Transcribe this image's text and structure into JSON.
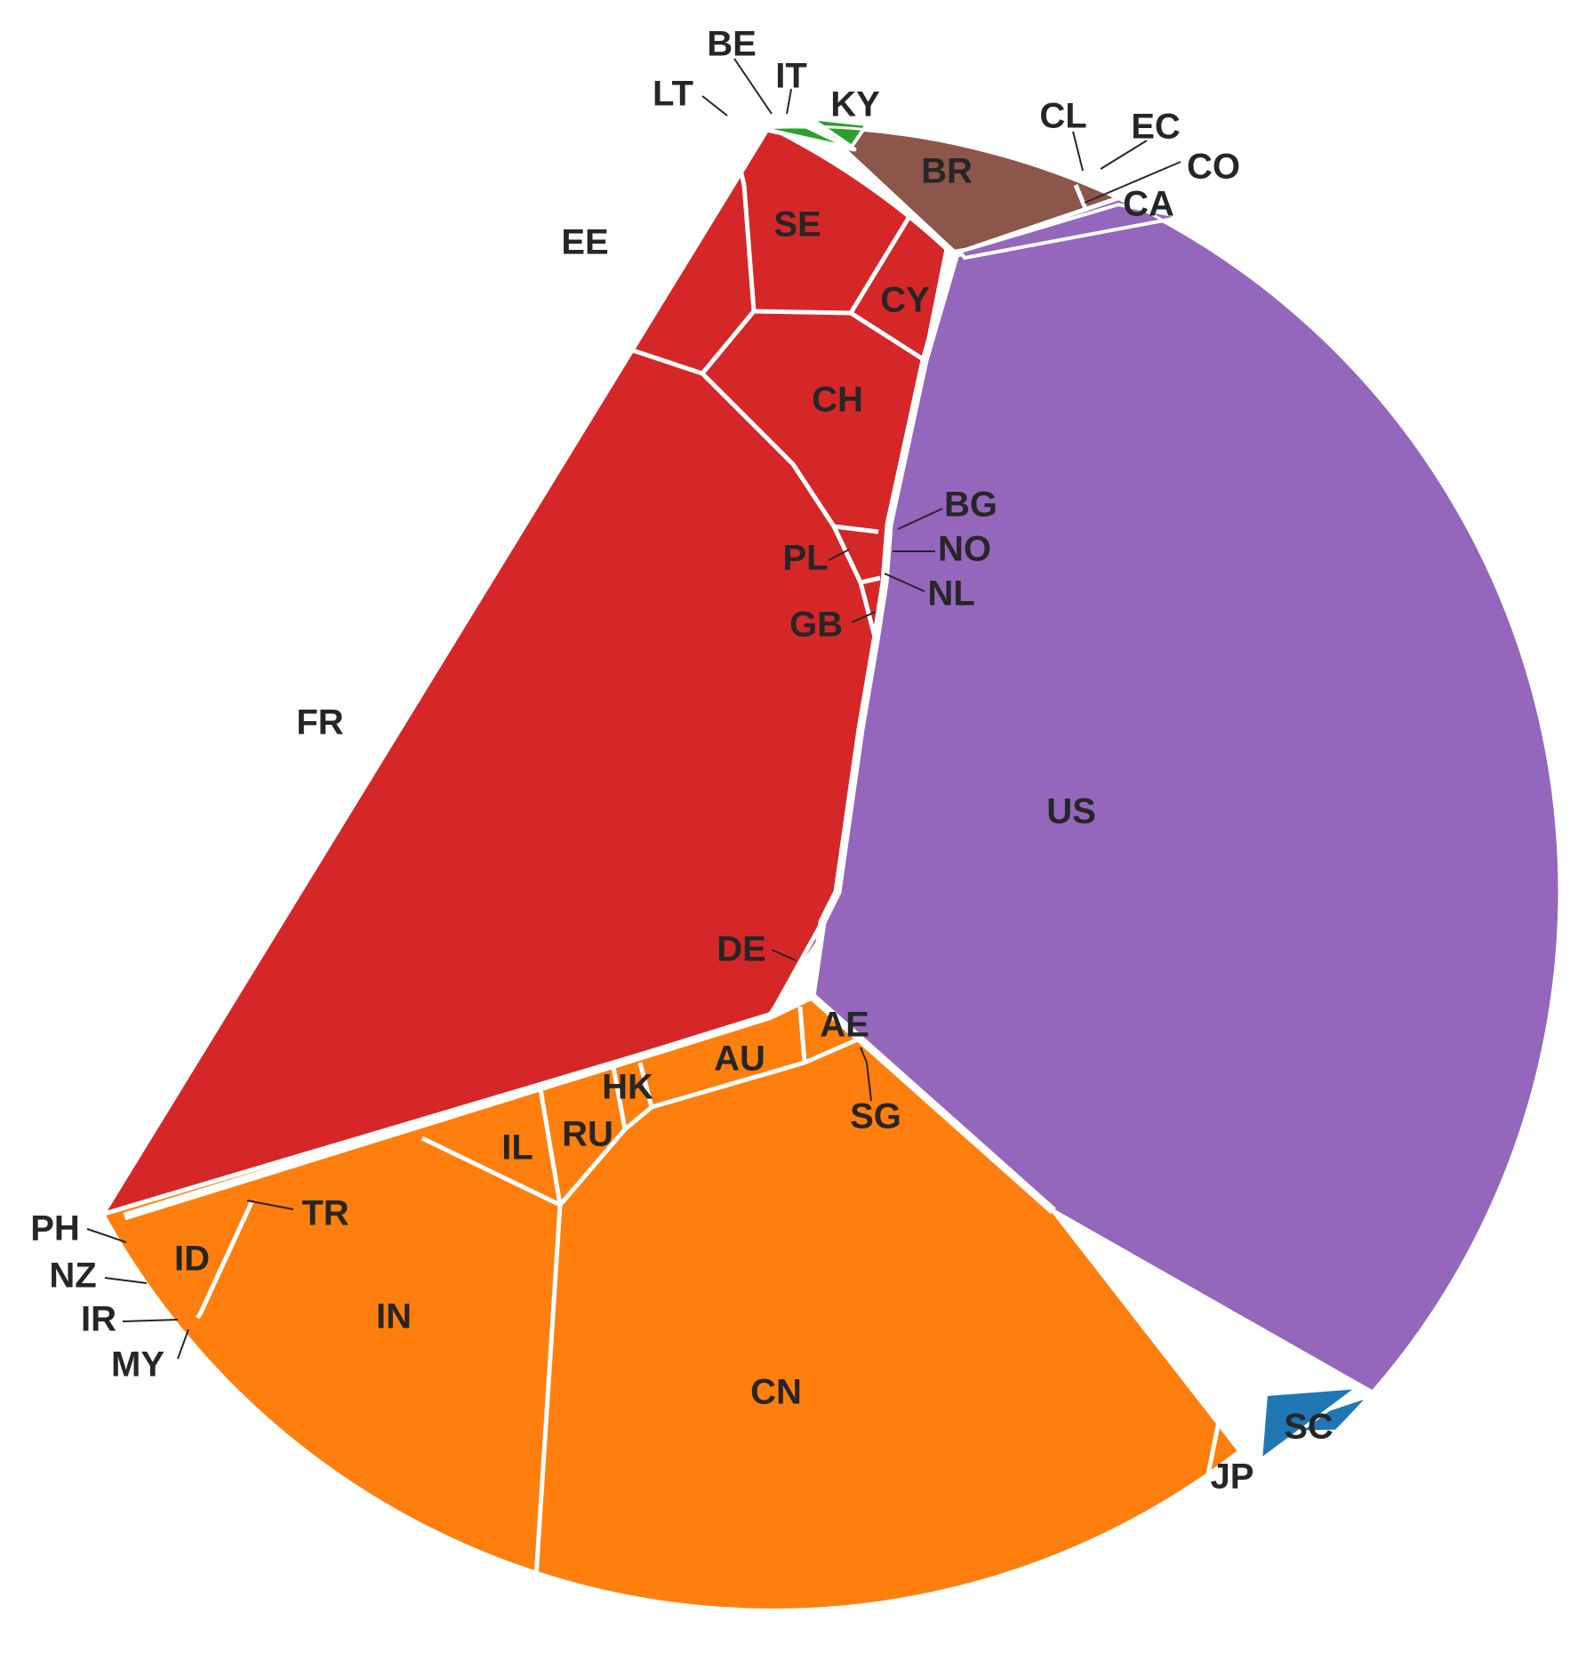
{
  "chart_data": {
    "type": "voronoi-treemap",
    "title": "",
    "groups": [
      {
        "color": "#d62728",
        "cells": [
          "FR",
          "EE",
          "SE",
          "CH",
          "CY",
          "LT",
          "BE",
          "IT",
          "BG",
          "NO",
          "PL",
          "NL",
          "GB",
          "DE"
        ]
      },
      {
        "color": "#9467bd",
        "cells": [
          "US",
          "CA"
        ]
      },
      {
        "color": "#ff7f0e",
        "cells": [
          "CN",
          "IN",
          "ID",
          "TR",
          "IL",
          "RU",
          "HK",
          "AU",
          "AE",
          "SG",
          "JP",
          "PH",
          "NZ",
          "IR",
          "MY"
        ]
      },
      {
        "color": "#8c564b",
        "cells": [
          "BR",
          "CL",
          "EC",
          "CO"
        ]
      },
      {
        "color": "#2ca02c",
        "cells": [
          "KY"
        ]
      },
      {
        "color": "#1f77b4",
        "cells": [
          "SC"
        ]
      }
    ],
    "labels": [
      "FR",
      "EE",
      "SE",
      "CH",
      "CY",
      "LT",
      "BE",
      "IT",
      "KY",
      "BR",
      "CL",
      "EC",
      "CO",
      "CA",
      "US",
      "BG",
      "NO",
      "NL",
      "PL",
      "GB",
      "DE",
      "AE",
      "AU",
      "HK",
      "SG",
      "RU",
      "IL",
      "CN",
      "IN",
      "TR",
      "ID",
      "PH",
      "NZ",
      "IR",
      "MY",
      "JP",
      "SC"
    ]
  }
}
